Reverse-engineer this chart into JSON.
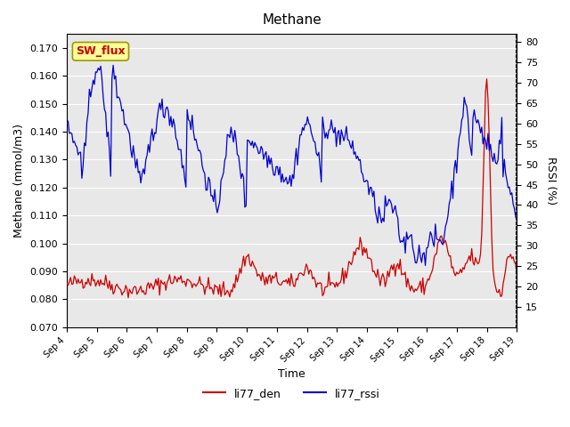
{
  "title": "Methane",
  "ylabel_left": "Methane (mmol/m3)",
  "ylabel_right": "RSSI (%)",
  "xlabel": "Time",
  "ylim_left": [
    0.07,
    0.175
  ],
  "ylim_right": [
    10,
    82
  ],
  "yticks_left": [
    0.07,
    0.08,
    0.09,
    0.1,
    0.11,
    0.12,
    0.13,
    0.14,
    0.15,
    0.16,
    0.17
  ],
  "yticks_right": [
    15,
    20,
    25,
    30,
    35,
    40,
    45,
    50,
    55,
    60,
    65,
    70,
    75,
    80
  ],
  "n_points": 360,
  "line_colors": [
    "#cc0000",
    "#0000cc"
  ],
  "legend_labels": [
    "li77_den",
    "li77_rssi"
  ],
  "annotation_text": "SW_flux",
  "annotation_facecolor": "#ffff99",
  "annotation_edgecolor": "#999900",
  "annotation_textcolor": "#cc0000",
  "bg_color": "#e8e8e8",
  "grid_color": "#ffffff"
}
